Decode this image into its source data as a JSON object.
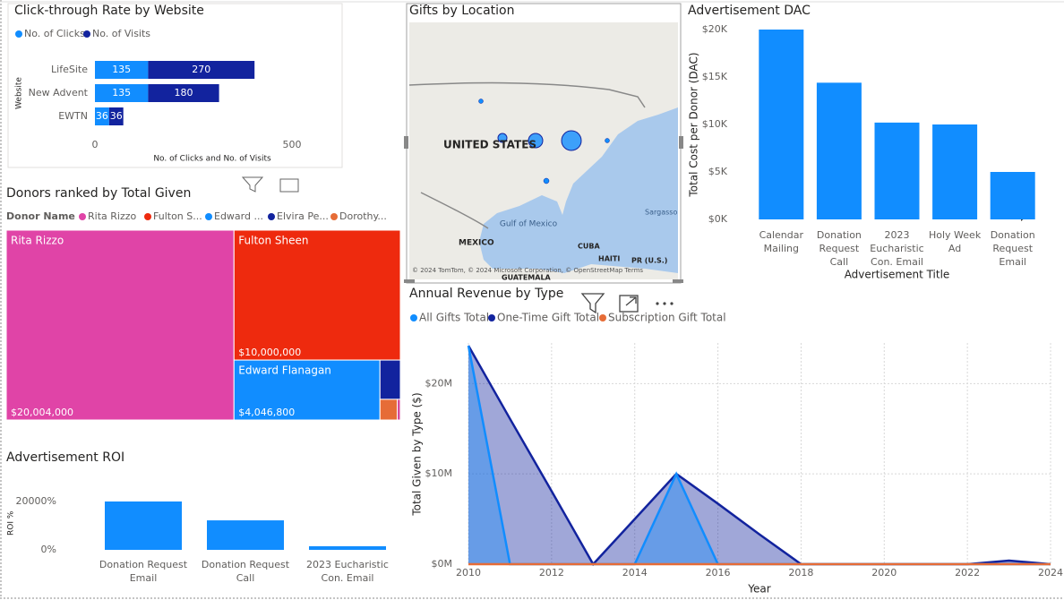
{
  "chart_data": [
    {
      "type": "hbar_stacked",
      "title": "Click-through Rate by Website",
      "categories": [
        "LifeSite",
        "New Advent",
        "EWTN"
      ],
      "series": [
        {
          "name": "No. of Clicks",
          "color": "#118dff",
          "values": [
            135,
            135,
            36
          ]
        },
        {
          "name": "No. of Visits",
          "color": "#12239e",
          "values": [
            270,
            180,
            36
          ]
        }
      ],
      "xlim": [
        0,
        600
      ],
      "xticks": [
        0,
        500
      ],
      "xlabel": "No. of Clicks and No. of Visits",
      "ylabel": "Website"
    },
    {
      "type": "bar",
      "title": "Advertisement DAC",
      "categories": [
        "Calendar Mailing",
        "Donation Request Call",
        "2023 Eucharistic Con. Email",
        "Holy Week Ad",
        "Donation Request Email"
      ],
      "values": [
        20000,
        14400,
        10200,
        10000,
        5000
      ],
      "color": "#118dff",
      "ylim": [
        0,
        20000
      ],
      "yticks": [
        {
          "value": 0,
          "label": "$0K"
        },
        {
          "value": 5000,
          "label": "$5K"
        },
        {
          "value": 10000,
          "label": "$10K"
        },
        {
          "value": 15000,
          "label": "$15K"
        },
        {
          "value": 20000,
          "label": "$20K"
        }
      ],
      "xlabel": "Advertisement Title",
      "ylabel": "Total Cost per Donor (DAC)"
    },
    {
      "type": "treemap",
      "title": "Donors ranked by Total Given",
      "legend_title": "Donor Name",
      "legend": [
        "Rita Rizzo",
        "Fulton S...",
        "Edward ...",
        "Elvira Pe...",
        "Dorothy..."
      ],
      "categories": [
        "Rita Rizzo",
        "Fulton Sheen",
        "Edward Flanagan",
        null,
        null,
        null
      ],
      "values": [
        20004000,
        10000000,
        4046800,
        370000,
        165000,
        30000
      ],
      "value_labels": [
        "$20,004,000",
        "$10,000,000",
        "$4,046,800",
        null,
        null,
        null
      ],
      "colors": [
        "#e044a7",
        "#ee2a0e",
        "#118dff",
        "#12239e",
        "#e66c37",
        "#d64c9a"
      ]
    },
    {
      "type": "bar",
      "title": "Advertisement ROI",
      "categories": [
        "Donation Request Email",
        "Donation Request Call",
        "2023 Eucharistic Con. Email"
      ],
      "values": [
        20000,
        12200,
        1500
      ],
      "color": "#118dff",
      "ylim": [
        0,
        22000
      ],
      "yticks": [
        {
          "value": 0,
          "label": "0%"
        },
        {
          "value": 20000,
          "label": "20000%"
        }
      ],
      "ylabel": "ROI %"
    },
    {
      "type": "area",
      "title": "Annual Revenue by Type",
      "x": [
        2010,
        2011,
        2012,
        2013,
        2014,
        2015,
        2016,
        2017,
        2018,
        2019,
        2020,
        2021,
        2022,
        2023,
        2024
      ],
      "series": [
        {
          "name": "All Gifts Total",
          "color": "#118dff",
          "values": [
            24200000,
            0,
            0,
            0,
            0,
            10000000,
            0,
            0,
            0,
            0,
            0,
            0,
            0,
            0,
            0
          ]
        },
        {
          "name": "One-Time Gift Total",
          "color": "#12239e",
          "values": [
            24200000,
            16100000,
            8100000,
            0,
            5000000,
            10000000,
            6700000,
            3300000,
            0,
            0,
            0,
            0,
            0,
            400000,
            0
          ]
        },
        {
          "name": "Subscription Gift Total",
          "color": "#e66c37",
          "values": [
            0,
            0,
            0,
            0,
            0,
            0,
            0,
            0,
            0,
            0,
            0,
            0,
            0,
            0,
            0
          ]
        }
      ],
      "xlim": [
        2010,
        2024
      ],
      "xticks": [
        2010,
        2012,
        2014,
        2016,
        2018,
        2020,
        2022,
        2024
      ],
      "ylim": [
        0,
        24500000
      ],
      "yticks": [
        {
          "value": 0,
          "label": "$0M"
        },
        {
          "value": 10000000,
          "label": "$10M"
        },
        {
          "value": 20000000,
          "label": "$20M"
        }
      ],
      "grid": true,
      "xlabel": "Year",
      "ylabel": "Total Given by Type ($)"
    }
  ],
  "map": {
    "title": "Gifts by Location",
    "labels": [
      "UNITED STATES",
      "Gulf of Mexico",
      "MEXICO",
      "CUBA",
      "HAITI",
      "PR (U.S.)",
      "GUATEMALA",
      "Sargasso"
    ],
    "attribution": "© 2024 TomTom, © 2024 Microsoft Corporation, © OpenStreetMap Terms"
  }
}
